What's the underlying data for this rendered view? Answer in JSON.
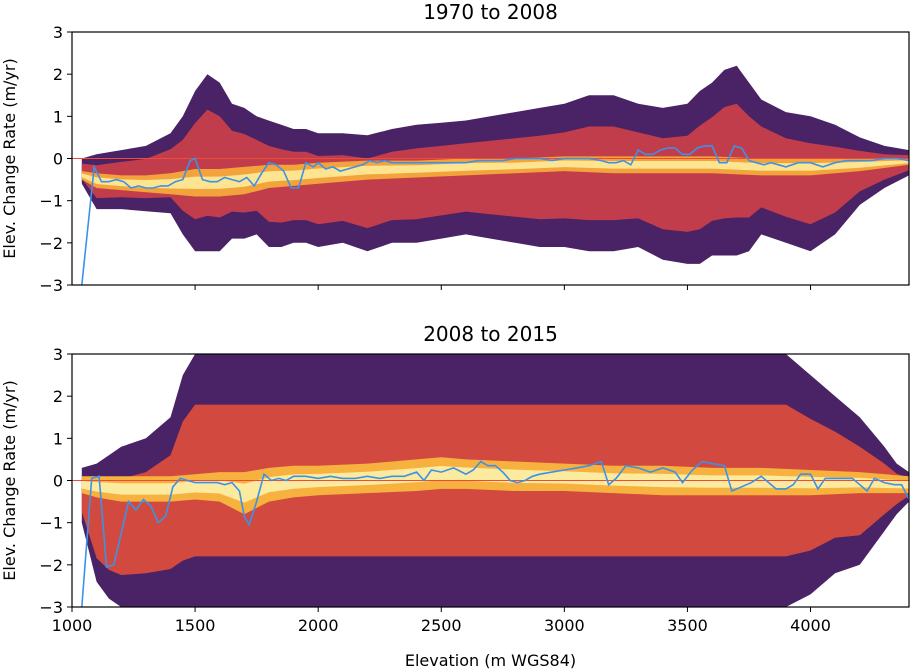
{
  "figure": {
    "xlabel": "Elevation (m WGS84)"
  },
  "colors": {
    "median_line": "#3a93e8",
    "zero_line": "#f04a3a",
    "colormap": "inferno",
    "axes_frame": "#000000"
  },
  "chart_data": [
    {
      "type": "heatmap",
      "title": "1970 to 2008",
      "xlabel": "",
      "ylabel": "Elev. Change Rate (m/yr)",
      "xlim": [
        1000,
        4400
      ],
      "ylim": [
        -3,
        3
      ],
      "xticks": [
        1500,
        2000,
        2500,
        3000,
        3500,
        4000
      ],
      "yticks": [
        -3,
        -2,
        -1,
        0,
        1,
        2,
        3
      ],
      "x_tick_labels_shown": false,
      "zero_reference_line": 0,
      "density_envelope": {
        "x": [
          1040,
          1100,
          1200,
          1300,
          1400,
          1450,
          1500,
          1550,
          1600,
          1650,
          1700,
          1750,
          1800,
          1850,
          1900,
          1950,
          2000,
          2100,
          2200,
          2300,
          2400,
          2500,
          2600,
          2700,
          2800,
          2900,
          3000,
          3100,
          3200,
          3300,
          3400,
          3500,
          3550,
          3600,
          3650,
          3700,
          3750,
          3800,
          3900,
          4000,
          4100,
          4200,
          4300,
          4400
        ],
        "lower": [
          -0.6,
          -1.2,
          -1.2,
          -1.25,
          -1.3,
          -1.8,
          -2.2,
          -2.2,
          -2.2,
          -1.9,
          -1.9,
          -1.8,
          -2.1,
          -2.1,
          -2.0,
          -2.0,
          -2.1,
          -2.0,
          -2.2,
          -2.0,
          -2.0,
          -1.9,
          -1.8,
          -1.9,
          -2.0,
          -2.1,
          -2.1,
          -2.2,
          -2.2,
          -2.1,
          -2.4,
          -2.5,
          -2.5,
          -2.3,
          -2.3,
          -2.3,
          -2.2,
          -1.8,
          -2.0,
          -2.2,
          -1.8,
          -1.1,
          -0.7,
          -0.4
        ],
        "upper": [
          0.0,
          0.1,
          0.2,
          0.3,
          0.6,
          1.0,
          1.6,
          2.0,
          1.8,
          1.3,
          1.2,
          1.0,
          0.9,
          0.8,
          0.7,
          0.7,
          0.6,
          0.6,
          0.55,
          0.7,
          0.8,
          0.85,
          0.9,
          1.0,
          1.1,
          1.2,
          1.3,
          1.5,
          1.5,
          1.3,
          1.2,
          1.3,
          1.6,
          1.8,
          2.1,
          2.2,
          1.8,
          1.4,
          1.1,
          1.0,
          0.8,
          0.5,
          0.3,
          0.2
        ]
      },
      "density_core": {
        "x": [
          1040,
          1100,
          1200,
          1300,
          1400,
          1500,
          1600,
          1700,
          1800,
          1900,
          2000,
          2200,
          2400,
          2600,
          2800,
          3000,
          3200,
          3400,
          3600,
          3800,
          4000,
          4200,
          4400
        ],
        "lower": [
          -0.5,
          -0.7,
          -0.75,
          -0.8,
          -0.85,
          -0.9,
          -0.9,
          -0.85,
          -0.7,
          -0.65,
          -0.6,
          -0.5,
          -0.45,
          -0.4,
          -0.35,
          -0.3,
          -0.35,
          -0.35,
          -0.35,
          -0.4,
          -0.4,
          -0.3,
          -0.15
        ],
        "upper": [
          -0.3,
          -0.35,
          -0.4,
          -0.4,
          -0.35,
          -0.25,
          -0.25,
          -0.2,
          -0.15,
          -0.15,
          -0.1,
          -0.05,
          -0.05,
          0.0,
          0.0,
          0.05,
          0.05,
          0.05,
          0.05,
          0.0,
          0.0,
          0.0,
          0.0
        ]
      },
      "series": [
        {
          "x": [
            1040,
            1090,
            1120,
            1150,
            1180,
            1210,
            1240,
            1270,
            1300,
            1330,
            1360,
            1390,
            1420,
            1450,
            1480,
            1500,
            1530,
            1560,
            1590,
            1620,
            1650,
            1680,
            1710,
            1740,
            1770,
            1800,
            1830,
            1860,
            1890,
            1920,
            1950,
            1980,
            2000,
            2030,
            2060,
            2090,
            2120,
            2150,
            2180,
            2210,
            2240,
            2270,
            2300,
            2350,
            2400,
            2450,
            2500,
            2550,
            2600,
            2650,
            2700,
            2750,
            2800,
            2850,
            2900,
            2950,
            3000,
            3050,
            3100,
            3150,
            3180,
            3210,
            3240,
            3270,
            3300,
            3330,
            3360,
            3390,
            3420,
            3450,
            3480,
            3510,
            3540,
            3570,
            3600,
            3630,
            3660,
            3690,
            3720,
            3750,
            3780,
            3810,
            3840,
            3870,
            3900,
            3950,
            4000,
            4050,
            4100,
            4150,
            4200,
            4250,
            4300,
            4350,
            4400
          ],
          "y": [
            -3.0,
            -0.2,
            -0.55,
            -0.55,
            -0.5,
            -0.55,
            -0.7,
            -0.65,
            -0.7,
            -0.7,
            -0.65,
            -0.65,
            -0.55,
            -0.5,
            -0.05,
            0.0,
            -0.5,
            -0.55,
            -0.55,
            -0.45,
            -0.5,
            -0.55,
            -0.45,
            -0.65,
            -0.35,
            -0.1,
            -0.15,
            -0.3,
            -0.7,
            -0.7,
            -0.1,
            -0.2,
            -0.1,
            -0.25,
            -0.2,
            -0.3,
            -0.25,
            -0.2,
            -0.15,
            -0.05,
            -0.1,
            -0.05,
            -0.1,
            -0.1,
            -0.1,
            -0.1,
            -0.1,
            -0.1,
            -0.1,
            -0.05,
            -0.05,
            -0.05,
            0.0,
            0.0,
            0.0,
            -0.05,
            0.0,
            0.0,
            0.0,
            -0.05,
            -0.1,
            -0.1,
            -0.05,
            -0.15,
            0.2,
            0.1,
            0.1,
            0.2,
            0.25,
            0.25,
            0.1,
            0.1,
            0.25,
            0.3,
            0.3,
            -0.1,
            -0.1,
            0.3,
            0.25,
            -0.05,
            -0.1,
            -0.15,
            -0.1,
            -0.15,
            -0.2,
            -0.1,
            -0.1,
            -0.2,
            -0.1,
            -0.05,
            -0.05,
            -0.05,
            0.0,
            0.0,
            -0.05
          ]
        }
      ]
    },
    {
      "type": "heatmap",
      "title": "2008 to 2015",
      "xlabel": "Elevation (m WGS84)",
      "ylabel": "Elev. Change Rate (m/yr)",
      "xlim": [
        1000,
        4400
      ],
      "ylim": [
        -3,
        3
      ],
      "xticks": [
        1000,
        1500,
        2000,
        2500,
        3000,
        3500,
        4000
      ],
      "xtick_labels": [
        "1000",
        "1500",
        "2000",
        "2500",
        "3000",
        "3500",
        "4000"
      ],
      "yticks": [
        -3,
        -2,
        -1,
        0,
        1,
        2,
        3
      ],
      "x_tick_labels_shown": true,
      "zero_reference_line": 0,
      "density_envelope": {
        "x": [
          1040,
          1100,
          1150,
          1200,
          1300,
          1400,
          1450,
          1500,
          1600,
          1700,
          1750,
          1800,
          1900,
          2000,
          2100,
          2200,
          2300,
          2400,
          2500,
          2600,
          2700,
          2800,
          2900,
          3000,
          3100,
          3200,
          3300,
          3400,
          3500,
          3600,
          3700,
          3800,
          3900,
          4000,
          4100,
          4200,
          4300,
          4350,
          4400
        ],
        "lower": [
          -1.0,
          -2.4,
          -2.8,
          -3.0,
          -3.0,
          -3.0,
          -3.0,
          -3.0,
          -3.0,
          -3.0,
          -3.0,
          -3.0,
          -3.0,
          -3.0,
          -3.0,
          -3.0,
          -3.0,
          -3.0,
          -3.0,
          -3.0,
          -3.0,
          -3.0,
          -3.0,
          -3.0,
          -3.0,
          -3.0,
          -3.0,
          -3.0,
          -3.0,
          -3.0,
          -3.0,
          -3.0,
          -3.0,
          -2.7,
          -2.2,
          -2.0,
          -1.2,
          -0.8,
          -0.5
        ],
        "upper": [
          0.3,
          0.4,
          0.6,
          0.8,
          1.0,
          1.5,
          2.5,
          3.0,
          3.0,
          3.0,
          3.0,
          3.0,
          3.0,
          3.0,
          3.0,
          3.0,
          3.0,
          3.0,
          3.0,
          3.0,
          3.0,
          3.0,
          3.0,
          3.0,
          3.0,
          3.0,
          3.0,
          3.0,
          3.0,
          3.0,
          3.0,
          3.0,
          3.0,
          2.5,
          2.0,
          1.5,
          0.8,
          0.4,
          0.2
        ]
      },
      "density_core": {
        "x": [
          1040,
          1100,
          1200,
          1300,
          1400,
          1500,
          1600,
          1700,
          1800,
          1900,
          2000,
          2200,
          2400,
          2500,
          2600,
          2800,
          3000,
          3200,
          3400,
          3600,
          3800,
          4000,
          4200,
          4400
        ],
        "lower": [
          -0.3,
          -0.4,
          -0.5,
          -0.5,
          -0.5,
          -0.45,
          -0.5,
          -0.8,
          -0.5,
          -0.4,
          -0.35,
          -0.3,
          -0.25,
          -0.2,
          -0.2,
          -0.25,
          -0.25,
          -0.3,
          -0.35,
          -0.35,
          -0.35,
          -0.35,
          -0.3,
          -0.3
        ],
        "upper": [
          0.1,
          0.1,
          0.1,
          0.1,
          0.1,
          0.15,
          0.2,
          0.2,
          0.3,
          0.35,
          0.35,
          0.4,
          0.5,
          0.55,
          0.5,
          0.45,
          0.4,
          0.35,
          0.35,
          0.3,
          0.3,
          0.25,
          0.2,
          0.1
        ]
      },
      "series": [
        {
          "x": [
            1040,
            1080,
            1110,
            1140,
            1170,
            1200,
            1230,
            1260,
            1290,
            1320,
            1350,
            1380,
            1410,
            1440,
            1470,
            1500,
            1530,
            1560,
            1590,
            1620,
            1650,
            1680,
            1700,
            1720,
            1750,
            1780,
            1810,
            1840,
            1870,
            1900,
            1950,
            2000,
            2050,
            2100,
            2150,
            2200,
            2250,
            2300,
            2350,
            2400,
            2430,
            2460,
            2500,
            2550,
            2600,
            2630,
            2660,
            2690,
            2720,
            2750,
            2780,
            2810,
            2840,
            2870,
            2900,
            2950,
            3000,
            3050,
            3100,
            3150,
            3180,
            3210,
            3250,
            3300,
            3350,
            3400,
            3450,
            3480,
            3520,
            3560,
            3600,
            3650,
            3680,
            3720,
            3760,
            3800,
            3830,
            3860,
            3900,
            3930,
            3960,
            4000,
            4030,
            4060,
            4100,
            4140,
            4170,
            4200,
            4230,
            4260,
            4300,
            4340,
            4370,
            4400
          ],
          "y": [
            -3.0,
            0.05,
            0.1,
            -2.05,
            -2.0,
            -1.25,
            -0.5,
            -0.7,
            -0.45,
            -0.6,
            -1.0,
            -0.85,
            -0.15,
            0.05,
            0.0,
            -0.05,
            -0.05,
            -0.05,
            -0.05,
            -0.1,
            -0.05,
            -0.25,
            -0.85,
            -1.05,
            -0.5,
            0.15,
            0.0,
            0.05,
            0.0,
            0.1,
            0.1,
            0.05,
            0.1,
            0.05,
            0.05,
            0.1,
            0.05,
            0.1,
            0.1,
            0.2,
            0.0,
            0.25,
            0.2,
            0.3,
            0.15,
            0.25,
            0.45,
            0.35,
            0.35,
            0.2,
            0.0,
            -0.05,
            0.0,
            0.1,
            0.15,
            0.2,
            0.25,
            0.3,
            0.35,
            0.45,
            -0.1,
            0.05,
            0.35,
            0.3,
            0.2,
            0.3,
            0.2,
            -0.05,
            0.25,
            0.45,
            0.4,
            0.35,
            -0.25,
            -0.15,
            -0.05,
            0.1,
            -0.05,
            -0.2,
            -0.2,
            -0.1,
            0.15,
            0.15,
            -0.2,
            0.05,
            0.05,
            0.05,
            0.05,
            -0.1,
            -0.25,
            0.05,
            -0.05,
            -0.1,
            -0.1,
            -0.45
          ]
        }
      ]
    }
  ]
}
